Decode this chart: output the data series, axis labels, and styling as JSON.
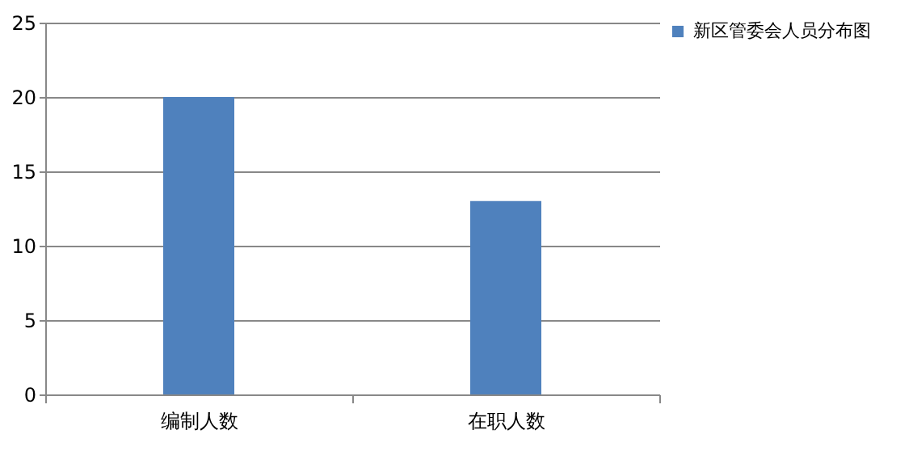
{
  "chart_data": {
    "type": "bar",
    "categories": [
      "编制人数",
      "在职人数"
    ],
    "series": [
      {
        "name": "新区管委会人员分布图",
        "color": "#4f81bd",
        "values": [
          20,
          13
        ]
      }
    ],
    "ylim": [
      0,
      25
    ],
    "yticks": [
      0,
      5,
      10,
      15,
      20,
      25
    ],
    "grid": "y",
    "legend": "right"
  }
}
